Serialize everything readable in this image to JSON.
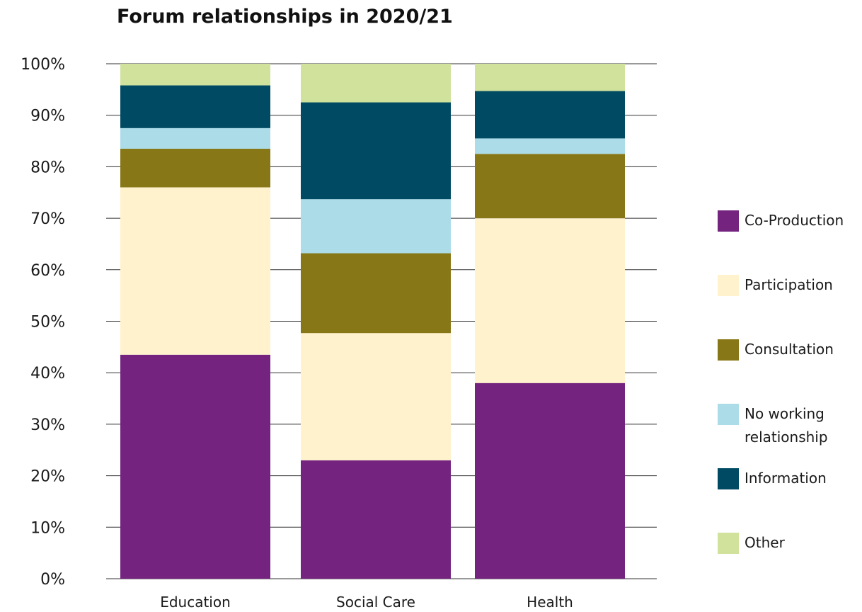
{
  "chart_data": {
    "type": "bar",
    "stacked": true,
    "title": "Forum relationships in 2020/21",
    "xlabel": "",
    "ylabel": "",
    "ylim": [
      0,
      100
    ],
    "yticks": [
      0,
      10,
      20,
      30,
      40,
      50,
      60,
      70,
      80,
      90,
      100
    ],
    "ytick_suffix": "%",
    "grid": true,
    "legend_position": "right",
    "categories": [
      "Education",
      "Social Care",
      "Health"
    ],
    "series": [
      {
        "name": "Co-Production",
        "color": "#74237f",
        "values": [
          43.5,
          23,
          38
        ]
      },
      {
        "name": "Participation",
        "color": "#fff2cc",
        "values": [
          32.5,
          24.7,
          32
        ]
      },
      {
        "name": "Consultation",
        "color": "#877716",
        "values": [
          7.5,
          15.5,
          12.5
        ]
      },
      {
        "name": "No working relationship",
        "color": "#acdce8",
        "values": [
          4,
          10.5,
          3
        ]
      },
      {
        "name": "Information",
        "color": "#004b63",
        "values": [
          8.3,
          18.8,
          9.2
        ]
      },
      {
        "name": "Other",
        "color": "#d1e29d",
        "values": [
          4.2,
          7.5,
          5.3
        ]
      }
    ],
    "legend_order": [
      "Co-Production",
      "Participation",
      "Consultation",
      "No working relationship",
      "Information",
      "Other"
    ]
  }
}
